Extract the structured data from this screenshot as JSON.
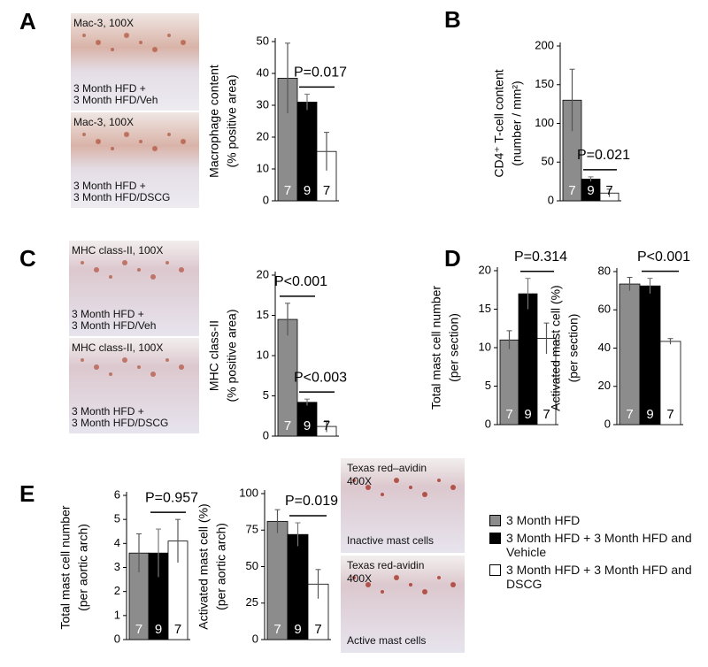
{
  "panel_labels": [
    "A",
    "B",
    "C",
    "D",
    "E"
  ],
  "images": [
    {
      "lines": [
        "Mac-3, 100X",
        "3 Month HFD +",
        "3 Month HFD/Veh"
      ]
    },
    {
      "lines": [
        "Mac-3, 100X",
        "3 Month HFD +",
        "3 Month HFD/DSCG"
      ]
    },
    {
      "lines": [
        "MHC class-II, 100X",
        "3 Month HFD +",
        "3 Month HFD/Veh"
      ]
    },
    {
      "lines": [
        "MHC class-II, 100X",
        "3 Month HFD +",
        "3 Month HFD/DSCG"
      ]
    },
    {
      "lines": [
        "Texas red–avidin",
        "400X",
        "Inactive mast cells"
      ]
    },
    {
      "lines": [
        "Texas red-avidin",
        "400X",
        "Active mast cells"
      ]
    }
  ],
  "legend": [
    {
      "name": "3 Month HFD",
      "color": "#8c8c8c"
    },
    {
      "name": "3 Month HFD + 3 Month HFD and Vehicle",
      "color": "#000000"
    },
    {
      "name": "3 Month HFD + 3 Month HFD and DSCG",
      "color": "#ffffff"
    }
  ],
  "chart_data": [
    {
      "type": "bar",
      "ylabel": [
        "Macrophage content",
        "(% positive area)"
      ],
      "values": [
        38.5,
        31,
        15.5
      ],
      "errors": [
        11,
        2.5,
        6
      ],
      "colors": [
        "#8c8c8c",
        "#000000",
        "#ffffff"
      ],
      "n_labels": [
        "7",
        "9",
        "7"
      ],
      "ylim": [
        0,
        50
      ],
      "yticks": [
        0,
        10,
        20,
        30,
        40,
        50
      ],
      "annotations": [
        "P=0.017"
      ]
    },
    {
      "type": "bar",
      "ylabel": [
        "CD4⁺ T-cell content",
        "(number / mm²)"
      ],
      "values": [
        130,
        28,
        10
      ],
      "errors": [
        40,
        3,
        5
      ],
      "colors": [
        "#8c8c8c",
        "#000000",
        "#ffffff"
      ],
      "n_labels": [
        "7",
        "9",
        "7"
      ],
      "ylim": [
        0,
        200
      ],
      "yticks": [
        0,
        50,
        100,
        150,
        200
      ],
      "annotations": [
        "P=0.021"
      ]
    },
    {
      "type": "bar",
      "ylabel": [
        "MHC class-II",
        "(% positive area)"
      ],
      "values": [
        14.5,
        4.2,
        1.2
      ],
      "errors": [
        2,
        0.4,
        0.7
      ],
      "colors": [
        "#8c8c8c",
        "#000000",
        "#ffffff"
      ],
      "n_labels": [
        "7",
        "9",
        "7"
      ],
      "ylim": [
        0,
        20
      ],
      "yticks": [
        0,
        5,
        10,
        15,
        20
      ],
      "annotations": [
        "P<0.001",
        "P<0.003"
      ]
    },
    {
      "type": "bar",
      "ylabel": [
        "Total mast cell number",
        "(per section)"
      ],
      "values": [
        11,
        17,
        11.2
      ],
      "errors": [
        1.2,
        2,
        2
      ],
      "colors": [
        "#8c8c8c",
        "#000000",
        "#ffffff"
      ],
      "n_labels": [
        "7",
        "9",
        "7"
      ],
      "ylim": [
        0,
        20
      ],
      "yticks": [
        0,
        5,
        10,
        15,
        20
      ],
      "annotations": [
        "P=0.314"
      ]
    },
    {
      "type": "bar",
      "ylabel": [
        "Activated mast cell (%)",
        "(per section)"
      ],
      "values": [
        73.5,
        72.5,
        43.5
      ],
      "errors": [
        3.5,
        4,
        1.5
      ],
      "colors": [
        "#8c8c8c",
        "#000000",
        "#ffffff"
      ],
      "n_labels": [
        "7",
        "9",
        "7"
      ],
      "ylim": [
        0,
        80
      ],
      "yticks": [
        0,
        20,
        40,
        60,
        80
      ],
      "annotations": [
        "P<0.001"
      ]
    },
    {
      "type": "bar",
      "ylabel": [
        "Total mast cell number",
        "(per aortic arch)"
      ],
      "values": [
        3.6,
        3.6,
        4.1
      ],
      "errors": [
        0.8,
        1,
        0.9
      ],
      "colors": [
        "#8c8c8c",
        "#000000",
        "#ffffff"
      ],
      "n_labels": [
        "7",
        "9",
        "7"
      ],
      "ylim": [
        0,
        6
      ],
      "yticks": [
        0,
        1,
        2,
        3,
        4,
        5,
        6
      ],
      "annotations": [
        "P=0.957"
      ]
    },
    {
      "type": "bar",
      "ylabel": [
        "Activated mast cell (%)",
        "(per aortic arch)"
      ],
      "values": [
        81,
        72,
        38
      ],
      "errors": [
        8,
        8,
        10
      ],
      "colors": [
        "#8c8c8c",
        "#000000",
        "#ffffff"
      ],
      "n_labels": [
        "7",
        "9",
        "7"
      ],
      "ylim": [
        0,
        100
      ],
      "yticks": [
        0,
        25,
        50,
        75,
        100
      ],
      "annotations": [
        "P=0.019"
      ]
    }
  ]
}
